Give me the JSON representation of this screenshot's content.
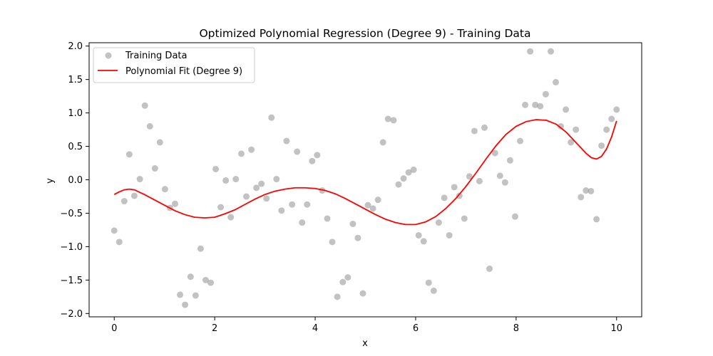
{
  "chart_data": {
    "type": "scatter",
    "title": "Optimized Polynomial Regression (Degree 9) - Training Data",
    "xlabel": "x",
    "ylabel": "y",
    "xlim": [
      -0.5,
      10.5
    ],
    "ylim": [
      -2.05,
      2.05
    ],
    "x_ticks": [
      0,
      2,
      4,
      6,
      8,
      10
    ],
    "x_tick_labels": [
      "0",
      "2",
      "4",
      "6",
      "8",
      "10"
    ],
    "y_ticks": [
      -2.0,
      -1.5,
      -1.0,
      -0.5,
      0.0,
      0.5,
      1.0,
      1.5,
      2.0
    ],
    "y_tick_labels": [
      "−2.0",
      "−1.5",
      "−1.0",
      "−0.5",
      "0.0",
      "0.5",
      "1.0",
      "1.5",
      "2.0"
    ],
    "grid": false,
    "legend_position": "upper-left",
    "series": [
      {
        "name": "Training Data",
        "kind": "scatter",
        "color": "#999999",
        "points": [
          [
            0.0,
            -0.76
          ],
          [
            0.1,
            -0.93
          ],
          [
            0.2,
            -0.32
          ],
          [
            0.3,
            0.38
          ],
          [
            0.4,
            -0.24
          ],
          [
            0.51,
            0.01
          ],
          [
            0.61,
            1.11
          ],
          [
            0.71,
            0.8
          ],
          [
            0.81,
            0.17
          ],
          [
            0.91,
            0.56
          ],
          [
            1.01,
            -0.14
          ],
          [
            1.11,
            -0.42
          ],
          [
            1.21,
            -0.36
          ],
          [
            1.31,
            -1.72
          ],
          [
            1.41,
            -1.87
          ],
          [
            1.52,
            -1.45
          ],
          [
            1.62,
            -1.73
          ],
          [
            1.72,
            -1.03
          ],
          [
            1.82,
            -1.5
          ],
          [
            1.92,
            -1.54
          ],
          [
            2.02,
            0.16
          ],
          [
            2.12,
            -0.41
          ],
          [
            2.22,
            -0.01
          ],
          [
            2.32,
            -0.56
          ],
          [
            2.42,
            0.01
          ],
          [
            2.53,
            0.39
          ],
          [
            2.63,
            -0.25
          ],
          [
            2.73,
            0.45
          ],
          [
            2.83,
            -0.12
          ],
          [
            2.93,
            -0.06
          ],
          [
            3.03,
            -0.28
          ],
          [
            3.13,
            0.93
          ],
          [
            3.23,
            0.01
          ],
          [
            3.33,
            -0.46
          ],
          [
            3.43,
            0.58
          ],
          [
            3.54,
            -0.37
          ],
          [
            3.64,
            0.42
          ],
          [
            3.74,
            -0.64
          ],
          [
            3.84,
            -0.37
          ],
          [
            3.94,
            0.28
          ],
          [
            4.04,
            0.37
          ],
          [
            4.14,
            -0.16
          ],
          [
            4.24,
            -0.58
          ],
          [
            4.34,
            -0.93
          ],
          [
            4.44,
            -1.75
          ],
          [
            4.55,
            -1.53
          ],
          [
            4.65,
            -1.46
          ],
          [
            4.75,
            -0.66
          ],
          [
            4.85,
            -0.87
          ],
          [
            4.95,
            -1.7
          ],
          [
            5.05,
            -0.38
          ],
          [
            5.15,
            -0.43
          ],
          [
            5.25,
            -0.3
          ],
          [
            5.35,
            0.56
          ],
          [
            5.45,
            0.91
          ],
          [
            5.56,
            0.89
          ],
          [
            5.66,
            -0.07
          ],
          [
            5.76,
            0.02
          ],
          [
            5.86,
            0.11
          ],
          [
            5.96,
            0.15
          ],
          [
            6.06,
            -0.83
          ],
          [
            6.16,
            -0.92
          ],
          [
            6.26,
            -1.54
          ],
          [
            6.36,
            -1.66
          ],
          [
            6.46,
            -0.64
          ],
          [
            6.57,
            -0.27
          ],
          [
            6.67,
            -0.83
          ],
          [
            6.77,
            -0.11
          ],
          [
            6.87,
            -0.24
          ],
          [
            6.97,
            -0.58
          ],
          [
            7.07,
            0.05
          ],
          [
            7.17,
            0.73
          ],
          [
            7.27,
            -0.02
          ],
          [
            7.37,
            0.78
          ],
          [
            7.47,
            -1.33
          ],
          [
            7.58,
            0.4
          ],
          [
            7.68,
            0.06
          ],
          [
            7.78,
            -0.04
          ],
          [
            7.88,
            0.29
          ],
          [
            7.98,
            -0.55
          ],
          [
            8.08,
            0.58
          ],
          [
            8.18,
            1.12
          ],
          [
            8.28,
            1.92
          ],
          [
            8.38,
            1.12
          ],
          [
            8.48,
            1.1
          ],
          [
            8.59,
            1.28
          ],
          [
            8.69,
            1.92
          ],
          [
            8.79,
            1.46
          ],
          [
            8.89,
            0.8
          ],
          [
            8.99,
            1.05
          ],
          [
            9.09,
            0.56
          ],
          [
            9.19,
            0.75
          ],
          [
            9.29,
            -0.26
          ],
          [
            9.39,
            -0.16
          ],
          [
            9.49,
            -0.17
          ],
          [
            9.6,
            -0.59
          ],
          [
            9.7,
            0.51
          ],
          [
            9.8,
            0.75
          ],
          [
            9.9,
            0.91
          ],
          [
            10.0,
            1.05
          ]
        ]
      },
      {
        "name": "Polynomial Fit (Degree 9)",
        "kind": "line",
        "color": "#ff0000",
        "points": [
          [
            0.0,
            -0.22
          ],
          [
            0.1,
            -0.18
          ],
          [
            0.2,
            -0.15
          ],
          [
            0.3,
            -0.14
          ],
          [
            0.4,
            -0.15
          ],
          [
            0.6,
            -0.22
          ],
          [
            0.8,
            -0.3
          ],
          [
            1.0,
            -0.38
          ],
          [
            1.2,
            -0.46
          ],
          [
            1.4,
            -0.52
          ],
          [
            1.6,
            -0.56
          ],
          [
            1.8,
            -0.57
          ],
          [
            2.0,
            -0.56
          ],
          [
            2.2,
            -0.51
          ],
          [
            2.4,
            -0.45
          ],
          [
            2.6,
            -0.37
          ],
          [
            2.8,
            -0.29
          ],
          [
            3.0,
            -0.22
          ],
          [
            3.2,
            -0.17
          ],
          [
            3.4,
            -0.14
          ],
          [
            3.6,
            -0.12
          ],
          [
            3.8,
            -0.12
          ],
          [
            4.0,
            -0.13
          ],
          [
            4.2,
            -0.16
          ],
          [
            4.4,
            -0.21
          ],
          [
            4.6,
            -0.28
          ],
          [
            4.8,
            -0.36
          ],
          [
            5.0,
            -0.44
          ],
          [
            5.2,
            -0.52
          ],
          [
            5.4,
            -0.59
          ],
          [
            5.6,
            -0.64
          ],
          [
            5.8,
            -0.67
          ],
          [
            6.0,
            -0.67
          ],
          [
            6.2,
            -0.63
          ],
          [
            6.4,
            -0.55
          ],
          [
            6.6,
            -0.43
          ],
          [
            6.8,
            -0.28
          ],
          [
            7.0,
            -0.1
          ],
          [
            7.2,
            0.1
          ],
          [
            7.4,
            0.31
          ],
          [
            7.6,
            0.51
          ],
          [
            7.8,
            0.68
          ],
          [
            8.0,
            0.8
          ],
          [
            8.2,
            0.87
          ],
          [
            8.4,
            0.9
          ],
          [
            8.6,
            0.89
          ],
          [
            8.8,
            0.83
          ],
          [
            9.0,
            0.71
          ],
          [
            9.2,
            0.55
          ],
          [
            9.4,
            0.39
          ],
          [
            9.5,
            0.33
          ],
          [
            9.6,
            0.31
          ],
          [
            9.7,
            0.35
          ],
          [
            9.8,
            0.46
          ],
          [
            9.9,
            0.64
          ],
          [
            10.0,
            0.88
          ]
        ]
      }
    ]
  }
}
